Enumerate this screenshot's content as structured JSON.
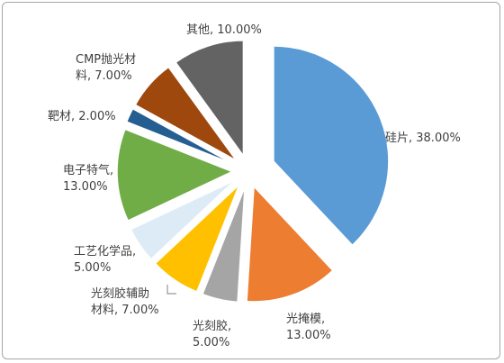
{
  "chart_data": {
    "type": "pie",
    "title": "",
    "categories": [
      "硅片",
      "光掩模",
      "光刻胶",
      "光刻胶辅助材料",
      "工艺化学品",
      "电子特气",
      "靶材",
      "CMP抛光材料",
      "其他"
    ],
    "values": [
      38.0,
      13.0,
      5.0,
      7.0,
      5.0,
      13.0,
      2.0,
      7.0,
      10.0
    ],
    "colors": [
      "#5b9bd5",
      "#ed7d31",
      "#a5a5a5",
      "#ffc000",
      "#ddebf7",
      "#70ad47",
      "#255e91",
      "#9e480e",
      "#636363"
    ],
    "data_labels": [
      [
        "硅片, 38.00%"
      ],
      [
        "光掩模,",
        "13.00%"
      ],
      [
        "光刻胶,",
        "5.00%"
      ],
      [
        "光刻胶辅助",
        "材料, 7.00%"
      ],
      [
        "工艺化学品,",
        "5.00%"
      ],
      [
        "电子特气,",
        "13.00%"
      ],
      [
        "靶材, 2.00%"
      ],
      [
        "CMP抛光材",
        "料, 7.00%"
      ],
      [
        "其他, 10.00%"
      ]
    ],
    "start_angle_deg": 0,
    "direction": "clockwise",
    "exploded": true,
    "legend": "none"
  }
}
